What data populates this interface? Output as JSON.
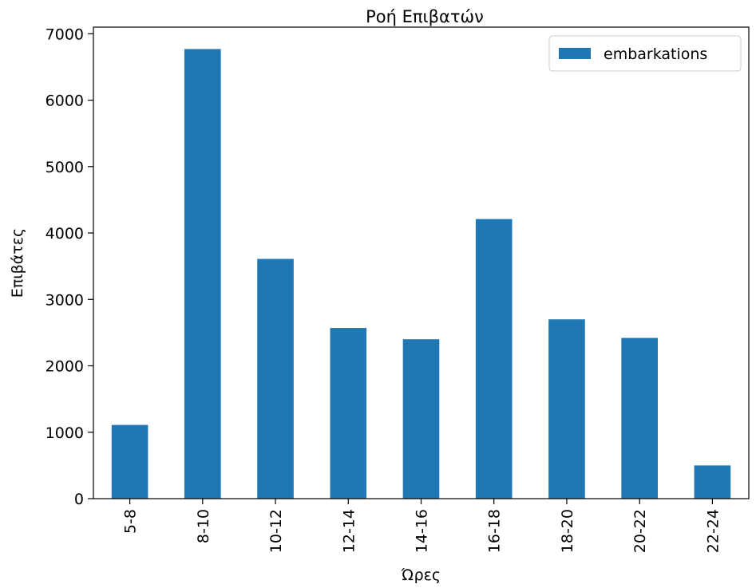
{
  "chart_data": {
    "type": "bar",
    "title": "Ροή Επιβατών",
    "xlabel": "Ώρες",
    "ylabel": "Επιβάτες",
    "categories": [
      "5-8",
      "8-10",
      "10-12",
      "12-14",
      "14-16",
      "16-18",
      "18-20",
      "20-22",
      "22-24"
    ],
    "series": [
      {
        "name": "embarkations",
        "values": [
          1110,
          6770,
          3610,
          2570,
          2400,
          4210,
          2700,
          2420,
          500
        ],
        "color": "#1f77b4"
      }
    ],
    "ylim": [
      0,
      7100
    ],
    "yticks": [
      0,
      1000,
      2000,
      3000,
      4000,
      5000,
      6000,
      7000
    ],
    "grid": false,
    "legend_position": "upper right"
  }
}
